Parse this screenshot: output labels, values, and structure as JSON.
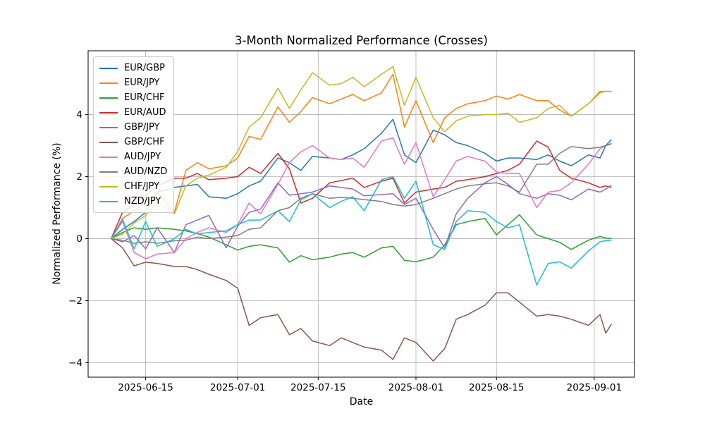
{
  "chart_data": {
    "type": "line",
    "title": "3-Month Normalized Performance (Crosses)",
    "xlabel": "Date",
    "ylabel": "Normalized Performance (%)",
    "grid": true,
    "legend_position": "upper left",
    "xlim": [
      "2025-06-05",
      "2025-09-08"
    ],
    "ylim": [
      -4.47,
      6.06
    ],
    "x_ticks": {
      "dates": [
        "2025-06-15",
        "2025-07-01",
        "2025-07-15",
        "2025-08-01",
        "2025-08-15",
        "2025-09-01"
      ],
      "labels": [
        "2025-06-15",
        "2025-07-01",
        "2025-07-15",
        "2025-08-01",
        "2025-08-15",
        "2025-09-01"
      ]
    },
    "y_ticks": {
      "values": [
        -4,
        -2,
        0,
        2,
        4
      ],
      "labels": [
        "−4",
        "−2",
        "0",
        "2",
        "4"
      ]
    },
    "colors": {
      "grid": "#b0b0b0",
      "spine": "#000000",
      "background": "#ffffff"
    },
    "x": [
      "2025-06-09",
      "2025-06-11",
      "2025-06-13",
      "2025-06-15",
      "2025-06-17",
      "2025-06-20",
      "2025-06-22",
      "2025-06-24",
      "2025-06-26",
      "2025-06-29",
      "2025-07-01",
      "2025-07-03",
      "2025-07-05",
      "2025-07-08",
      "2025-07-10",
      "2025-07-12",
      "2025-07-14",
      "2025-07-17",
      "2025-07-19",
      "2025-07-21",
      "2025-07-23",
      "2025-07-26",
      "2025-07-28",
      "2025-07-30",
      "2025-08-01",
      "2025-08-04",
      "2025-08-06",
      "2025-08-08",
      "2025-08-10",
      "2025-08-13",
      "2025-08-15",
      "2025-08-17",
      "2025-08-19",
      "2025-08-22",
      "2025-08-24",
      "2025-08-26",
      "2025-08-28",
      "2025-08-31",
      "2025-09-02",
      "2025-09-03",
      "2025-09-04"
    ],
    "series": [
      {
        "name": "EUR/GBP",
        "color": "#1f77b4",
        "values": [
          0,
          0.3,
          0.55,
          0.85,
          1.5,
          1.65,
          1.7,
          1.75,
          1.35,
          1.3,
          1.45,
          1.7,
          1.85,
          2.6,
          2.45,
          2.2,
          2.65,
          2.6,
          2.55,
          2.7,
          2.9,
          3.4,
          3.85,
          2.7,
          2.45,
          3.5,
          3.35,
          3.1,
          3.0,
          2.75,
          2.5,
          2.6,
          2.6,
          2.55,
          2.7,
          2.5,
          2.35,
          2.7,
          2.6,
          3.0,
          3.2
        ]
      },
      {
        "name": "EUR/JPY",
        "color": "#ff7f0e",
        "values": [
          0,
          0.65,
          0.9,
          1.15,
          1.5,
          0.85,
          2.2,
          2.45,
          2.25,
          2.35,
          2.6,
          3.3,
          3.2,
          4.25,
          3.75,
          4.1,
          4.55,
          4.35,
          4.5,
          4.65,
          4.45,
          4.7,
          5.3,
          3.6,
          4.45,
          3.1,
          3.9,
          4.2,
          4.35,
          4.45,
          4.6,
          4.5,
          4.65,
          4.45,
          4.45,
          4.15,
          3.95,
          4.35,
          4.75,
          4.75,
          4.75
        ]
      },
      {
        "name": "EUR/CHF",
        "color": "#2ca02c",
        "values": [
          0,
          0.2,
          0.35,
          0.3,
          0.35,
          0.3,
          0.25,
          0.16,
          0.05,
          -0.2,
          -0.37,
          -0.25,
          -0.2,
          -0.3,
          -0.76,
          -0.55,
          -0.68,
          -0.6,
          -0.5,
          -0.45,
          -0.6,
          -0.3,
          -0.25,
          -0.7,
          -0.75,
          -0.6,
          -0.2,
          0.45,
          0.55,
          0.65,
          0.12,
          0.45,
          0.77,
          0.12,
          0.0,
          -0.12,
          -0.35,
          -0.05,
          0.07,
          0.02,
          0.0
        ]
      },
      {
        "name": "EUR/AUD",
        "color": "#d62728",
        "values": [
          0,
          0.85,
          1.1,
          1.4,
          1.7,
          1.95,
          1.95,
          2.1,
          1.9,
          1.95,
          2.0,
          2.3,
          2.1,
          2.75,
          2.25,
          1.15,
          1.3,
          1.8,
          1.87,
          1.95,
          1.65,
          1.85,
          1.95,
          1.15,
          1.5,
          1.6,
          1.65,
          1.85,
          1.9,
          2.0,
          2.1,
          2.2,
          2.4,
          3.15,
          2.95,
          2.2,
          1.95,
          1.8,
          1.65,
          1.7,
          1.65
        ]
      },
      {
        "name": "GBP/JPY",
        "color": "#9467bd",
        "values": [
          0,
          -0.1,
          0.1,
          -0.33,
          0.35,
          -0.45,
          0.45,
          0.6,
          0.75,
          -0.3,
          0.4,
          0.85,
          0.95,
          1.8,
          1.4,
          1.45,
          1.5,
          1.7,
          1.65,
          1.6,
          1.38,
          1.42,
          1.45,
          1.1,
          1.3,
          0.3,
          -0.3,
          0.8,
          1.3,
          1.8,
          2.0,
          1.75,
          1.45,
          1.3,
          1.45,
          1.4,
          1.25,
          1.6,
          1.5,
          1.6,
          1.72
        ]
      },
      {
        "name": "GBP/CHF",
        "color": "#8c564b",
        "values": [
          0,
          -0.3,
          -0.88,
          -0.76,
          -0.8,
          -0.9,
          -0.9,
          -1.0,
          -1.15,
          -1.35,
          -1.6,
          -2.8,
          -2.55,
          -2.45,
          -3.1,
          -2.9,
          -3.3,
          -3.45,
          -3.2,
          -3.35,
          -3.5,
          -3.6,
          -3.9,
          -3.2,
          -3.35,
          -3.95,
          -3.55,
          -2.6,
          -2.45,
          -2.15,
          -1.75,
          -1.75,
          -2.05,
          -2.5,
          -2.45,
          -2.5,
          -2.6,
          -2.8,
          -2.45,
          -3.05,
          -2.75
        ]
      },
      {
        "name": "AUD/JPY",
        "color": "#e377c2",
        "values": [
          0,
          0.55,
          -0.45,
          -0.65,
          -0.5,
          -0.45,
          0.0,
          0.2,
          0.35,
          0.2,
          0.45,
          1.15,
          0.8,
          1.75,
          2.45,
          2.8,
          3.0,
          2.6,
          2.55,
          2.6,
          2.3,
          3.15,
          3.25,
          2.4,
          3.1,
          1.35,
          1.9,
          2.5,
          2.65,
          2.5,
          2.15,
          2.1,
          2.1,
          1.0,
          1.5,
          1.55,
          1.8,
          2.4,
          2.9,
          3.0,
          3.05
        ]
      },
      {
        "name": "AUD/NZD",
        "color": "#7f7f7f",
        "values": [
          0,
          -0.05,
          -0.15,
          -0.1,
          -0.15,
          -0.07,
          -0.05,
          0.05,
          0.0,
          0.05,
          0.1,
          0.3,
          0.35,
          0.9,
          1.0,
          1.3,
          1.45,
          1.3,
          1.33,
          1.3,
          1.26,
          1.2,
          1.1,
          1.05,
          1.1,
          1.3,
          1.45,
          1.6,
          1.7,
          1.77,
          1.8,
          1.7,
          1.5,
          2.4,
          2.4,
          2.75,
          2.97,
          2.9,
          2.95,
          3.0,
          3.07
        ]
      },
      {
        "name": "CHF/JPY",
        "color": "#bcbd22",
        "values": [
          0,
          0.15,
          0.5,
          0.75,
          1.2,
          0.8,
          1.7,
          1.95,
          2.05,
          2.3,
          2.8,
          3.6,
          3.9,
          4.85,
          4.2,
          4.8,
          5.35,
          4.95,
          5.0,
          5.2,
          4.9,
          5.3,
          5.55,
          4.3,
          5.2,
          3.9,
          3.45,
          3.8,
          3.95,
          4.0,
          4.0,
          4.05,
          3.75,
          3.9,
          4.2,
          4.3,
          3.95,
          4.35,
          4.7,
          4.75,
          4.75
        ]
      },
      {
        "name": "NZD/JPY",
        "color": "#17becf",
        "values": [
          0,
          0.62,
          -0.33,
          0.55,
          -0.25,
          0.0,
          0.3,
          0.15,
          0.2,
          0.25,
          0.45,
          0.6,
          0.6,
          0.9,
          0.55,
          1.25,
          1.45,
          1.0,
          1.2,
          1.35,
          0.9,
          1.9,
          2.0,
          1.3,
          1.85,
          -0.2,
          -0.35,
          0.55,
          0.9,
          0.85,
          0.55,
          0.35,
          0.45,
          -1.5,
          -0.8,
          -0.75,
          -0.95,
          -0.4,
          -0.1,
          -0.07,
          -0.05
        ]
      }
    ]
  }
}
